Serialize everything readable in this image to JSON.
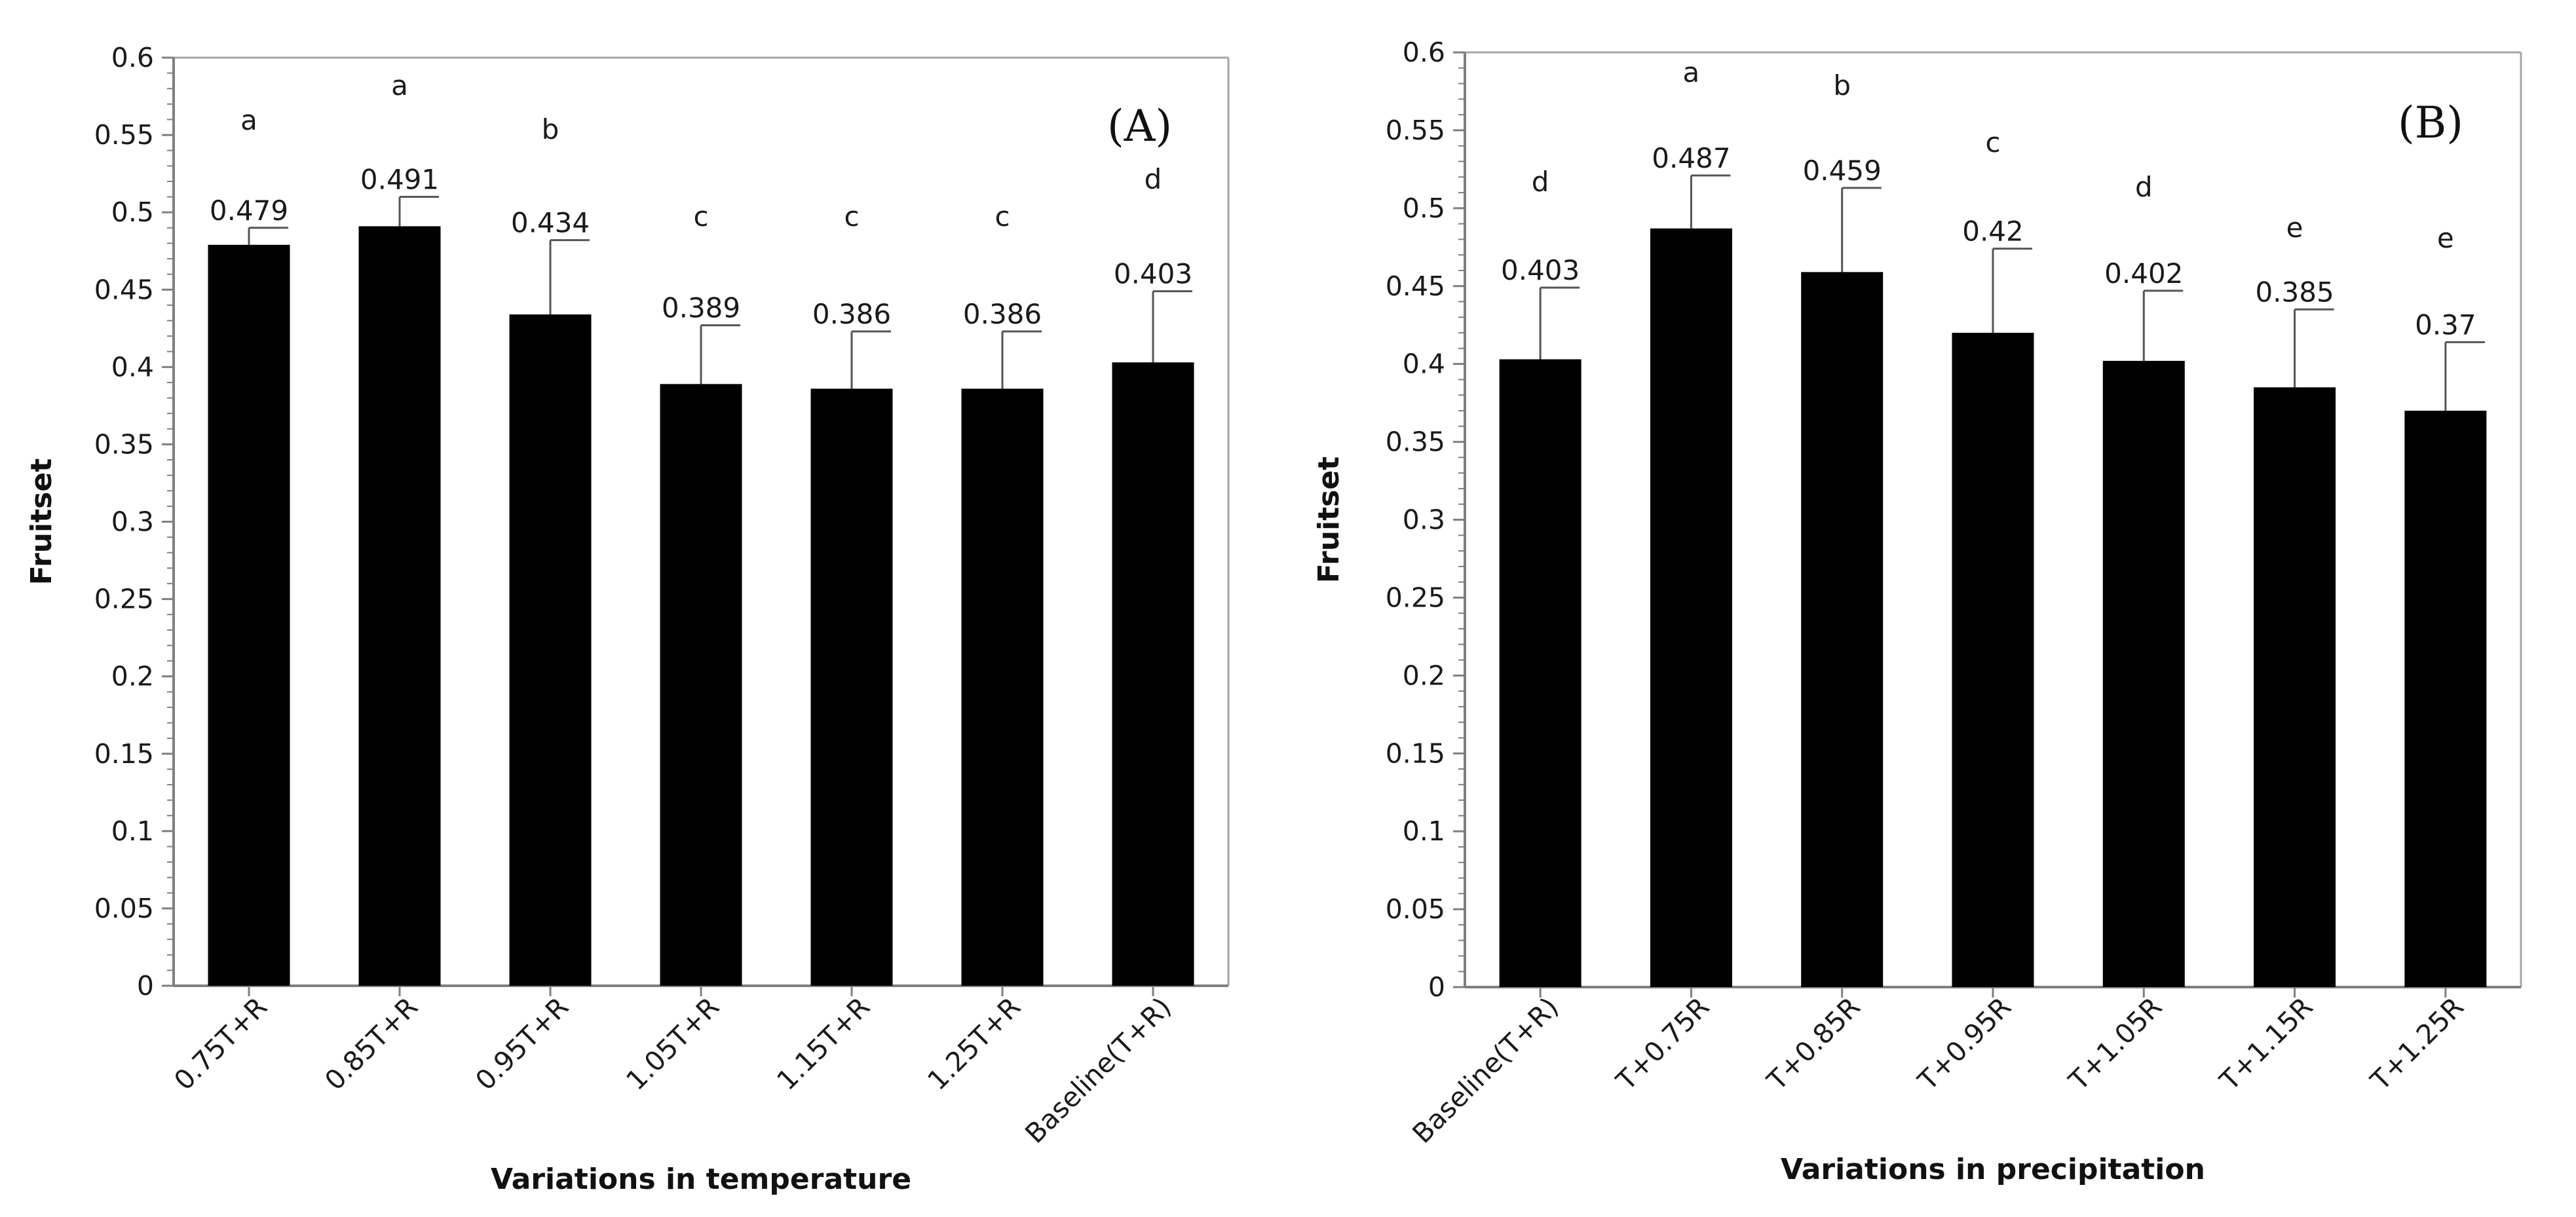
{
  "chart_data": [
    {
      "type": "bar",
      "panel_label": "(A)",
      "xlabel": "Variations in temperature",
      "ylabel": "Fruitset",
      "ylim": [
        0,
        0.6
      ],
      "yticks": [
        0,
        0.05,
        0.1,
        0.15,
        0.2,
        0.25,
        0.3,
        0.35,
        0.4,
        0.45,
        0.5,
        0.55,
        0.6
      ],
      "ytick_labels": [
        "0",
        "0.05",
        "0.1",
        "0.15",
        "0.2",
        "0.25",
        "0.3",
        "0.35",
        "0.4",
        "0.45",
        "0.5",
        "0.55",
        "0.6"
      ],
      "grid": false,
      "categories": [
        "0.75T+R",
        "0.85T+R",
        "0.95T+R",
        "1.05T+R",
        "1.15T+R",
        "1.25T+R",
        "Baseline(T+R)"
      ],
      "values": [
        0.479,
        0.491,
        0.434,
        0.389,
        0.386,
        0.386,
        0.403
      ],
      "value_labels": [
        "0.479",
        "0.491",
        "0.434",
        "0.389",
        "0.386",
        "0.386",
        "0.403"
      ],
      "error_upper": [
        0.49,
        0.51,
        0.482,
        0.427,
        0.423,
        0.423,
        0.449
      ],
      "significance_letters": [
        "a",
        "a",
        "b",
        "c",
        "c",
        "c",
        "d"
      ],
      "colors": {
        "bar": "#000000",
        "axis": "#7f7f7f",
        "frame": "#a6a6a6"
      }
    },
    {
      "type": "bar",
      "panel_label": "(B)",
      "xlabel": "Variations in precipitation",
      "ylabel": "Fruitset",
      "ylim": [
        0,
        0.6
      ],
      "yticks": [
        0,
        0.05,
        0.1,
        0.15,
        0.2,
        0.25,
        0.3,
        0.35,
        0.4,
        0.45,
        0.5,
        0.55,
        0.6
      ],
      "ytick_labels": [
        "0",
        "0.05",
        "0.1",
        "0.15",
        "0.2",
        "0.25",
        "0.3",
        "0.35",
        "0.4",
        "0.45",
        "0.5",
        "0.55",
        "0.6"
      ],
      "grid": false,
      "categories": [
        "Baseline(T+R)",
        "T+0.75R",
        "T+0.85R",
        "T+0.95R",
        "T+1.05R",
        "T+1.15R",
        "T+1.25R"
      ],
      "values": [
        0.403,
        0.487,
        0.459,
        0.42,
        0.402,
        0.385,
        0.37
      ],
      "value_labels": [
        "0.403",
        "0.487",
        "0.459",
        "0.42",
        "0.402",
        "0.385",
        "0.37"
      ],
      "error_upper": [
        0.449,
        0.521,
        0.513,
        0.474,
        0.447,
        0.435,
        0.414
      ],
      "significance_letters": [
        "d",
        "a",
        "b",
        "c",
        "d",
        "e",
        "e"
      ],
      "colors": {
        "bar": "#000000",
        "axis": "#7f7f7f",
        "frame": "#a6a6a6"
      }
    }
  ]
}
